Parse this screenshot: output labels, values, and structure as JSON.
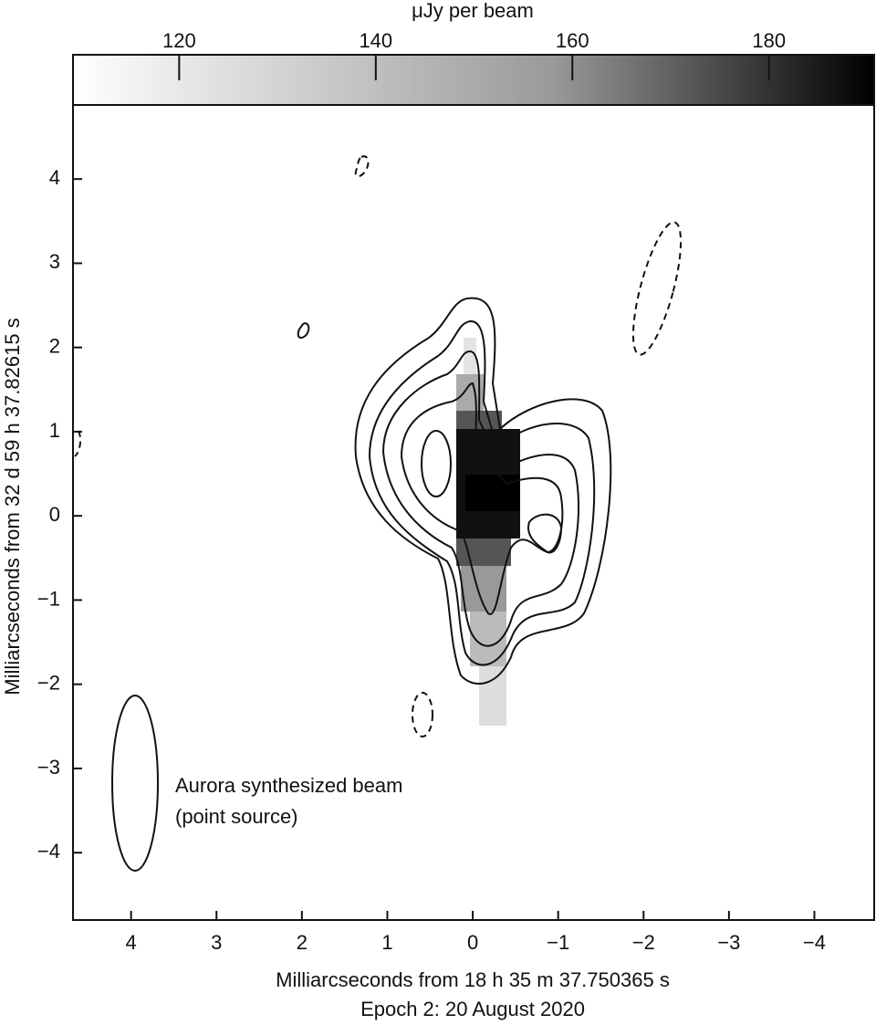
{
  "chart_data": {
    "type": "contour",
    "colorbar": {
      "label": "μJy per beam",
      "lim": [
        109.2,
        190.7
      ],
      "ticks": [
        120,
        140,
        160,
        180
      ]
    },
    "xlabel": "Milliarcseconds from 18 h 35 m 37.750365 s",
    "caption": "Epoch 2: 20 August 2020",
    "ylabel": "Milliarcseconds from 32 d 59 h 37.82615 s",
    "xlim": [
      4.68,
      -4.7
    ],
    "xticks": [
      4,
      3,
      2,
      1,
      0,
      {
        "value": -1,
        "label": "−1"
      },
      {
        "value": -2,
        "label": "−2"
      },
      {
        "value": -3,
        "label": "−3"
      },
      {
        "value": -4,
        "label": "−4"
      }
    ],
    "ylim": [
      -4.8,
      4.88
    ],
    "yticks": [
      {
        "value": -4,
        "label": "−4"
      },
      {
        "value": -3,
        "label": "−3"
      },
      {
        "value": -2,
        "label": "−2"
      },
      {
        "value": -1,
        "label": "−1"
      },
      0,
      1,
      2,
      3,
      4
    ],
    "annotations": [
      "Aurora synthesized beam",
      "(point source)"
    ]
  }
}
